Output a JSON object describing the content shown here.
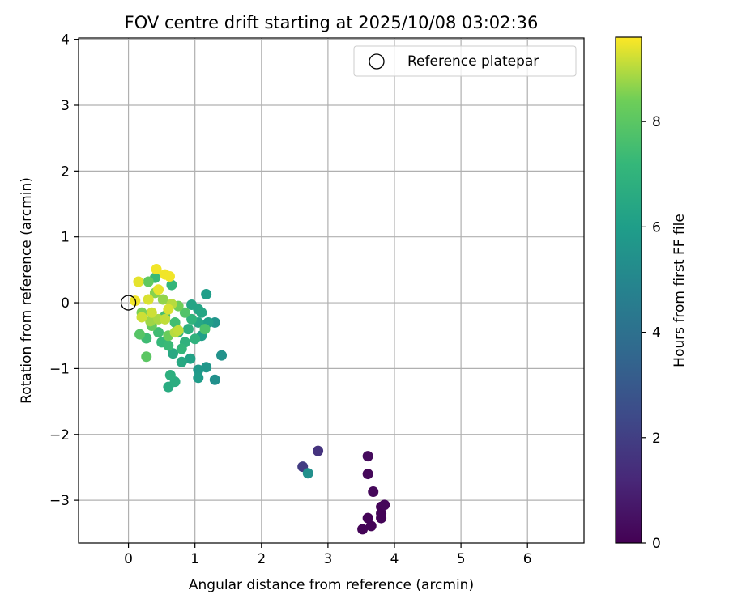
{
  "chart_data": {
    "type": "scatter",
    "title": "FOV centre drift starting at 2025/10/08 03:02:36",
    "xlabel": "Angular distance from reference (arcmin)",
    "ylabel": "Rotation from reference (arcmin)",
    "xlim": [
      -0.75,
      6.85
    ],
    "ylim": [
      -3.65,
      4.02
    ],
    "xticks": [
      0,
      1,
      2,
      3,
      4,
      5,
      6
    ],
    "yticks": [
      -3,
      -2,
      -1,
      0,
      1,
      2,
      3,
      4
    ],
    "grid": true,
    "legend": {
      "position": "top-right",
      "entries": [
        "Reference platepar"
      ]
    },
    "reference_point": {
      "x": 0,
      "y": 0,
      "label": "Reference platepar"
    },
    "colorbar": {
      "label": "Hours from first FF file",
      "range": [
        0,
        9.6
      ],
      "ticks": [
        0,
        2,
        4,
        6,
        8
      ],
      "colormap": "viridis"
    },
    "points": [
      {
        "x": 3.52,
        "y": -3.44,
        "t": 0.1
      },
      {
        "x": 3.65,
        "y": -3.39,
        "t": 0.1
      },
      {
        "x": 3.8,
        "y": -3.27,
        "t": 0.1
      },
      {
        "x": 3.8,
        "y": -3.2,
        "t": 0.1
      },
      {
        "x": 3.6,
        "y": -3.27,
        "t": 0.1
      },
      {
        "x": 3.8,
        "y": -3.1,
        "t": 0.1
      },
      {
        "x": 3.85,
        "y": -3.07,
        "t": 0.2
      },
      {
        "x": 3.68,
        "y": -2.87,
        "t": 0.2
      },
      {
        "x": 3.6,
        "y": -2.6,
        "t": 0.2
      },
      {
        "x": 3.6,
        "y": -2.33,
        "t": 0.3
      },
      {
        "x": 2.85,
        "y": -2.25,
        "t": 1.6
      },
      {
        "x": 2.62,
        "y": -2.49,
        "t": 1.9
      },
      {
        "x": 2.7,
        "y": -2.59,
        "t": 5.4
      },
      {
        "x": 1.3,
        "y": -1.17,
        "t": 5.4
      },
      {
        "x": 1.4,
        "y": -0.8,
        "t": 5.5
      },
      {
        "x": 1.3,
        "y": -0.3,
        "t": 5.6
      },
      {
        "x": 1.17,
        "y": -0.98,
        "t": 5.7
      },
      {
        "x": 1.05,
        "y": -1.02,
        "t": 5.8
      },
      {
        "x": 1.05,
        "y": -1.14,
        "t": 5.9
      },
      {
        "x": 1.17,
        "y": 0.13,
        "t": 6.0
      },
      {
        "x": 1.2,
        "y": -0.3,
        "t": 6.1
      },
      {
        "x": 1.1,
        "y": -0.5,
        "t": 6.1
      },
      {
        "x": 0.93,
        "y": -0.85,
        "t": 6.2
      },
      {
        "x": 0.95,
        "y": -0.03,
        "t": 6.3
      },
      {
        "x": 1.05,
        "y": -0.1,
        "t": 6.3
      },
      {
        "x": 1.05,
        "y": -0.3,
        "t": 6.4
      },
      {
        "x": 1.1,
        "y": -0.15,
        "t": 6.4
      },
      {
        "x": 0.8,
        "y": -0.9,
        "t": 6.5
      },
      {
        "x": 0.67,
        "y": -0.77,
        "t": 6.5
      },
      {
        "x": 0.6,
        "y": -1.28,
        "t": 6.6
      },
      {
        "x": 0.7,
        "y": -1.2,
        "t": 6.7
      },
      {
        "x": 0.63,
        "y": -1.1,
        "t": 6.8
      },
      {
        "x": 0.9,
        "y": -0.4,
        "t": 6.8
      },
      {
        "x": 0.85,
        "y": -0.6,
        "t": 6.9
      },
      {
        "x": 1.0,
        "y": -0.55,
        "t": 6.9
      },
      {
        "x": 0.75,
        "y": -0.45,
        "t": 7.0
      },
      {
        "x": 0.95,
        "y": -0.25,
        "t": 7.0
      },
      {
        "x": 0.65,
        "y": 0.27,
        "t": 7.1
      },
      {
        "x": 0.8,
        "y": -0.7,
        "t": 7.1
      },
      {
        "x": 0.5,
        "y": -0.6,
        "t": 7.2
      },
      {
        "x": 0.4,
        "y": 0.38,
        "t": 7.3
      },
      {
        "x": 0.6,
        "y": -0.65,
        "t": 7.3
      },
      {
        "x": 0.27,
        "y": -0.54,
        "t": 7.4
      },
      {
        "x": 0.45,
        "y": -0.45,
        "t": 7.4
      },
      {
        "x": 0.7,
        "y": -0.3,
        "t": 7.5
      },
      {
        "x": 0.55,
        "y": -0.2,
        "t": 7.6
      },
      {
        "x": 1.15,
        "y": -0.4,
        "t": 7.7
      },
      {
        "x": 0.85,
        "y": -0.15,
        "t": 7.8
      },
      {
        "x": 0.17,
        "y": -0.48,
        "t": 7.9
      },
      {
        "x": 0.27,
        "y": -0.82,
        "t": 8.0
      },
      {
        "x": 0.3,
        "y": 0.32,
        "t": 8.1
      },
      {
        "x": 0.35,
        "y": -0.35,
        "t": 8.2
      },
      {
        "x": 0.6,
        "y": -0.5,
        "t": 8.3
      },
      {
        "x": 0.75,
        "y": -0.05,
        "t": 8.4
      },
      {
        "x": 0.2,
        "y": -0.15,
        "t": 8.5
      },
      {
        "x": 0.4,
        "y": 0.15,
        "t": 8.6
      },
      {
        "x": 0.52,
        "y": 0.05,
        "t": 8.7
      },
      {
        "x": 0.33,
        "y": -0.28,
        "t": 8.8
      },
      {
        "x": 0.45,
        "y": -0.25,
        "t": 8.9
      },
      {
        "x": 0.65,
        "y": -0.02,
        "t": 9.0
      },
      {
        "x": 0.7,
        "y": -0.45,
        "t": 9.0
      },
      {
        "x": 0.75,
        "y": -0.42,
        "t": 9.1
      },
      {
        "x": 0.55,
        "y": -0.25,
        "t": 9.1
      },
      {
        "x": 0.2,
        "y": -0.22,
        "t": 9.2
      },
      {
        "x": 0.35,
        "y": -0.15,
        "t": 9.2
      },
      {
        "x": 0.6,
        "y": -0.1,
        "t": 9.3
      },
      {
        "x": 0.3,
        "y": 0.05,
        "t": 9.3
      },
      {
        "x": 0.45,
        "y": 0.2,
        "t": 9.4
      },
      {
        "x": 0.15,
        "y": 0.32,
        "t": 9.4
      },
      {
        "x": 0.1,
        "y": 0.03,
        "t": 9.5
      },
      {
        "x": 0.55,
        "y": 0.43,
        "t": 9.5
      },
      {
        "x": 0.42,
        "y": 0.51,
        "t": 9.5
      },
      {
        "x": 0.62,
        "y": 0.4,
        "t": 9.5
      }
    ]
  }
}
